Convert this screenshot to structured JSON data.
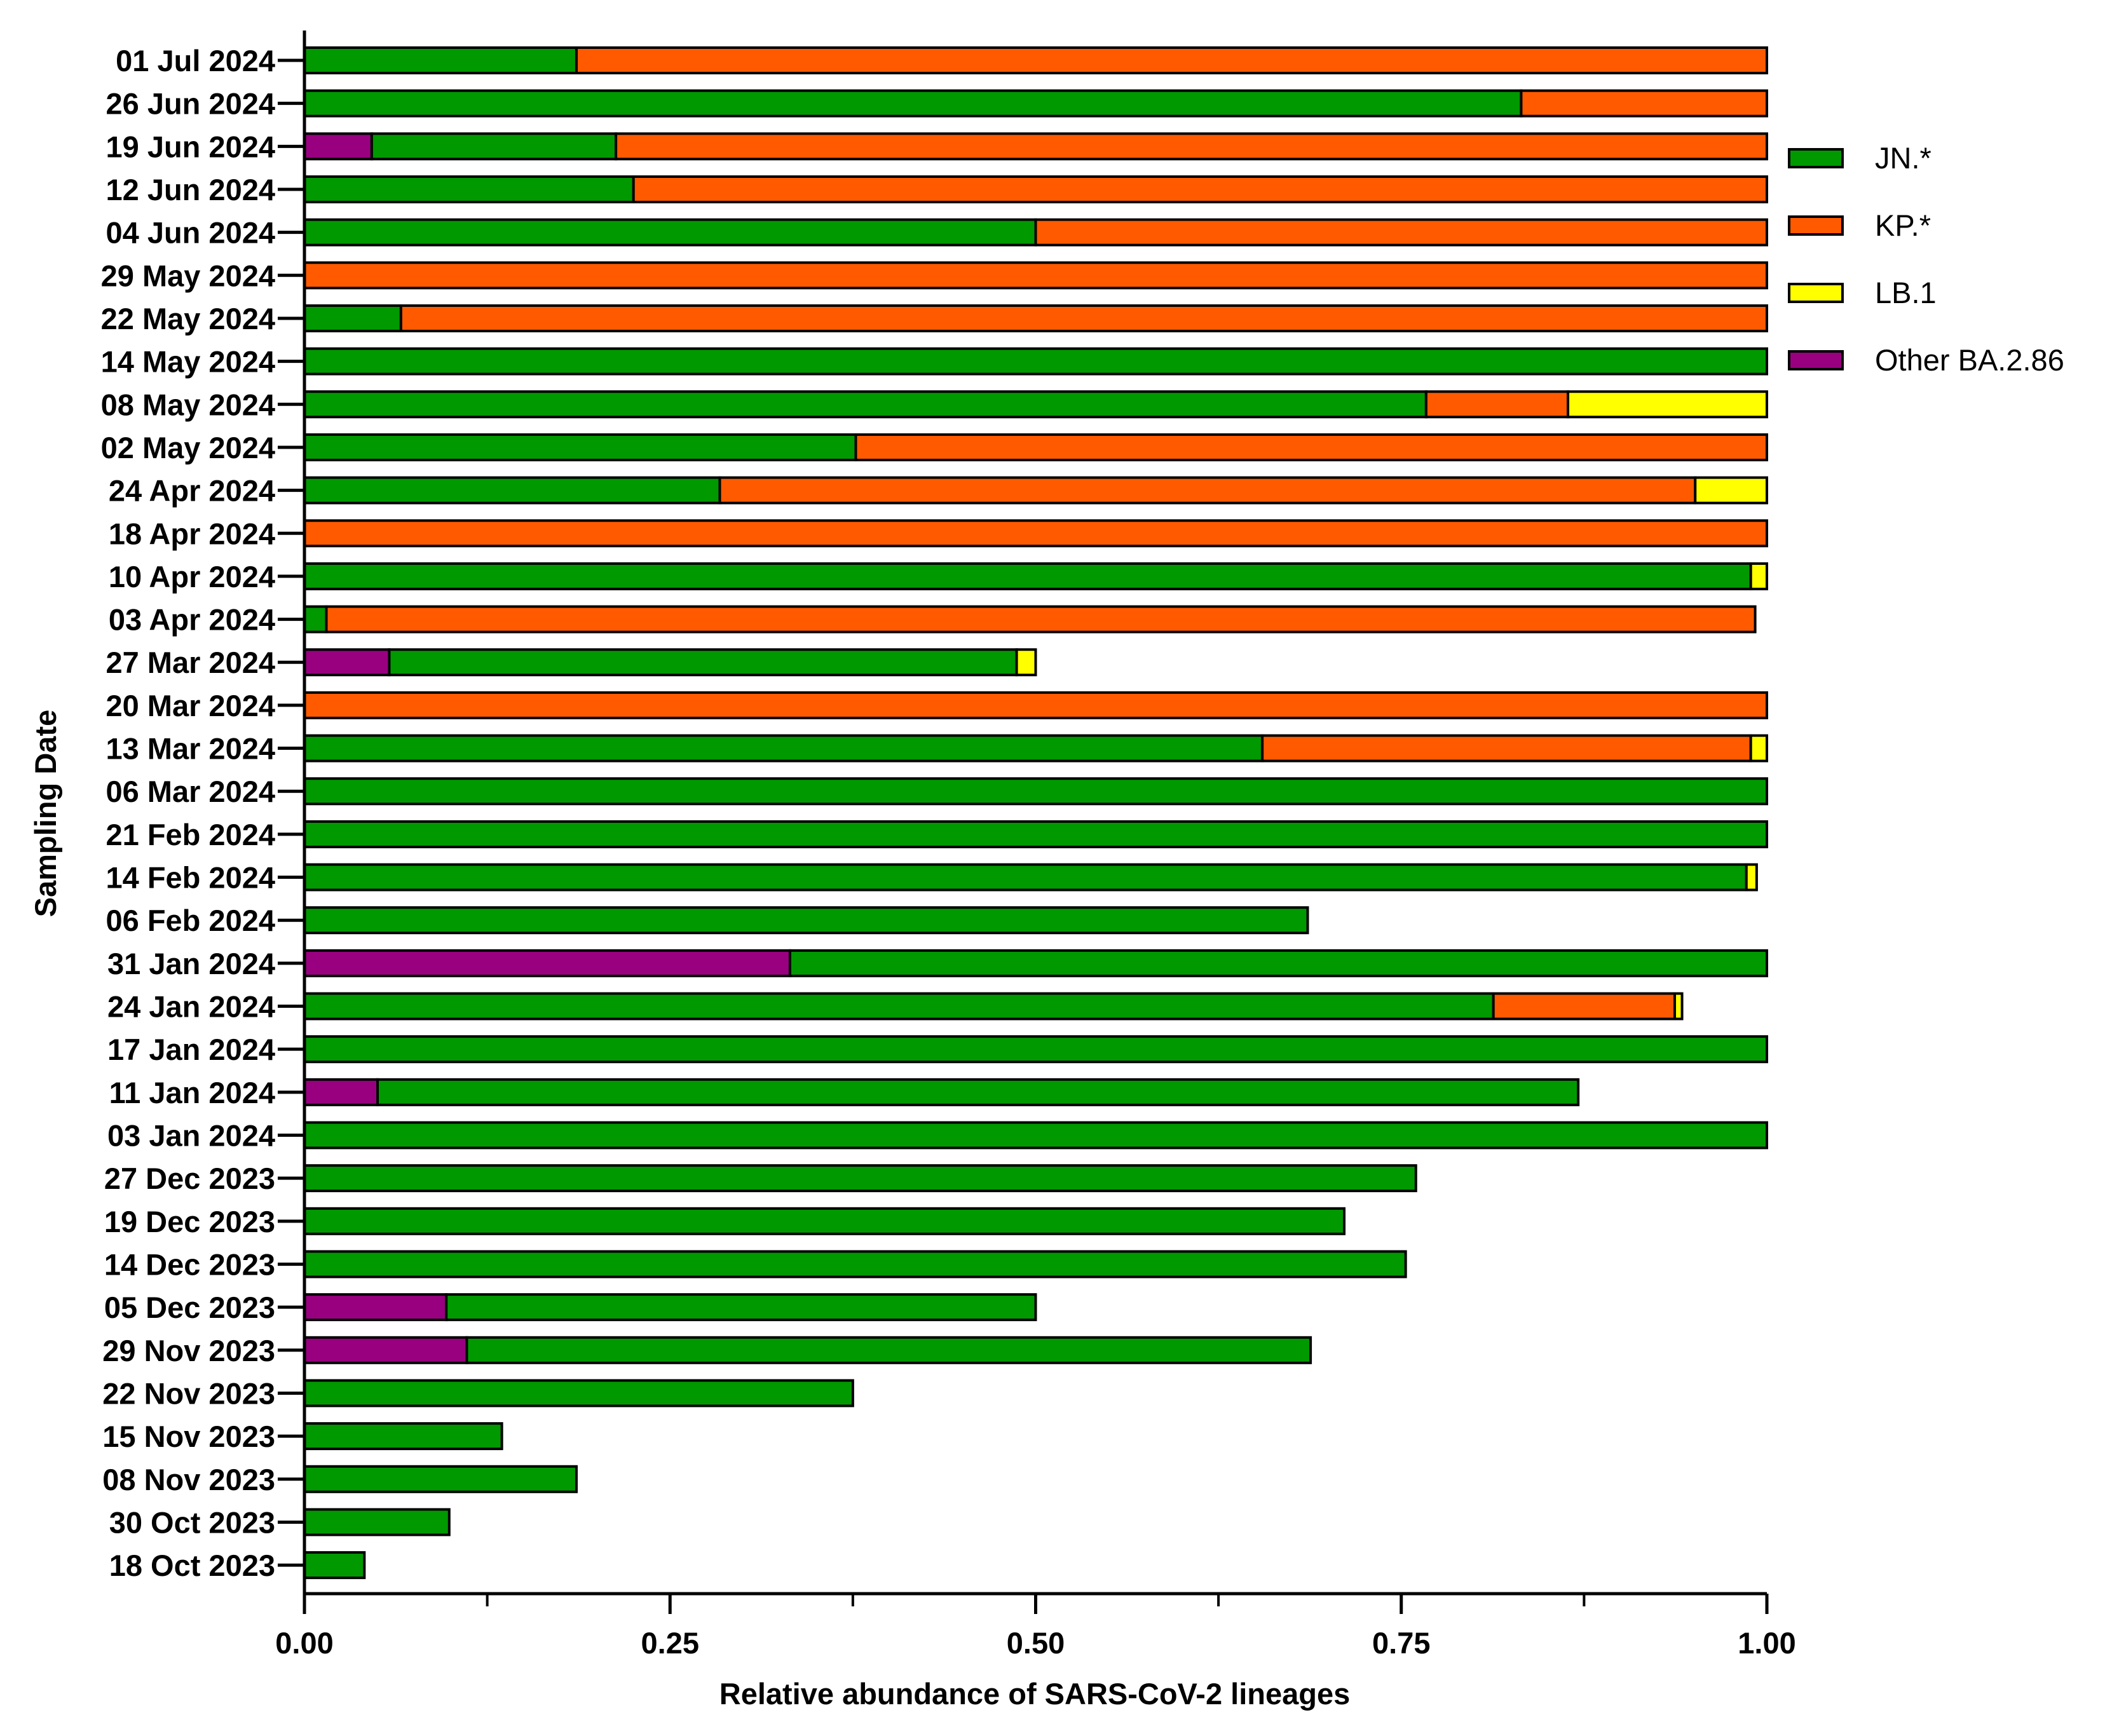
{
  "chart_data": {
    "type": "bar",
    "orientation": "horizontal",
    "stacked": true,
    "title": "",
    "xlabel": "Relative abundance of SARS-CoV-2 lineages",
    "ylabel": "Sampling Date",
    "xlim": [
      0,
      1
    ],
    "x_ticks": [
      "0.00",
      "0.25",
      "0.50",
      "0.75",
      "1.00"
    ],
    "x_tick_values": [
      0,
      0.25,
      0.5,
      0.75,
      1.0
    ],
    "x_minor_ticks": [
      0.125,
      0.375,
      0.625,
      0.875
    ],
    "legend_position": "right",
    "grid": false,
    "categories": [
      "01 Jul 2024",
      "26 Jun 2024",
      "19 Jun 2024",
      "12 Jun 2024",
      "04 Jun 2024",
      "29 May 2024",
      "22 May 2024",
      "14 May 2024",
      "08 May 2024",
      "02 May 2024",
      "24 Apr 2024",
      "18 Apr 2024",
      "10 Apr 2024",
      "03 Apr 2024",
      "27 Mar 2024",
      "20 Mar 2024",
      "13 Mar 2024",
      "06 Mar 2024",
      "21 Feb 2024",
      "14 Feb 2024",
      "06 Feb 2024",
      "31 Jan 2024",
      "24 Jan 2024",
      "17 Jan 2024",
      "11 Jan 2024",
      "03 Jan 2024",
      "27 Dec 2023",
      "19 Dec 2023",
      "14 Dec 2023",
      "05 Dec 2023",
      "29 Nov 2023",
      "22 Nov 2023",
      "15 Nov 2023",
      "08 Nov 2023",
      "30 Oct 2023",
      "18 Oct 2023"
    ],
    "stack_order": [
      "Other BA.2.86",
      "JN.*",
      "KP.*",
      "LB.1"
    ],
    "legend_order": [
      "JN.*",
      "KP.*",
      "LB.1",
      "Other BA.2.86"
    ],
    "series": [
      {
        "name": "JN.*",
        "color": "#009900",
        "values": [
          0.186,
          0.832,
          0.167,
          0.225,
          0.5,
          0,
          0.066,
          1.0,
          0.767,
          0.377,
          0.284,
          0,
          0.989,
          0.015,
          0.429,
          0,
          0.655,
          1.0,
          1.0,
          0.986,
          0.686,
          0.668,
          0.813,
          1.0,
          0.821,
          1.0,
          0.76,
          0.711,
          0.753,
          0.403,
          0.577,
          0.375,
          0.135,
          0.186,
          0.099,
          0.041
        ]
      },
      {
        "name": "KP.*",
        "color": "#ff5a00",
        "values": [
          0.814,
          0.168,
          0.787,
          0.775,
          0.5,
          1.0,
          0.934,
          0,
          0.097,
          0.623,
          0.667,
          1.0,
          0,
          0.977,
          0,
          1.0,
          0.334,
          0,
          0,
          0,
          0,
          0,
          0.124,
          0,
          0,
          0,
          0,
          0,
          0,
          0,
          0,
          0,
          0,
          0,
          0,
          0
        ]
      },
      {
        "name": "LB.1",
        "color": "#ffff00",
        "values": [
          0,
          0,
          0,
          0,
          0,
          0,
          0,
          0,
          0.136,
          0,
          0.049,
          0,
          0.011,
          0,
          0.013,
          0,
          0.011,
          0,
          0,
          0.007,
          0,
          0,
          0.005,
          0,
          0,
          0,
          0,
          0,
          0,
          0,
          0,
          0,
          0,
          0,
          0,
          0
        ]
      },
      {
        "name": "Other BA.2.86",
        "color": "#990080",
        "values": [
          0,
          0,
          0.046,
          0,
          0,
          0,
          0,
          0,
          0,
          0,
          0,
          0,
          0,
          0,
          0.058,
          0,
          0,
          0,
          0,
          0,
          0,
          0.332,
          0,
          0,
          0.05,
          0,
          0,
          0,
          0,
          0.097,
          0.111,
          0,
          0,
          0,
          0,
          0
        ]
      }
    ]
  }
}
